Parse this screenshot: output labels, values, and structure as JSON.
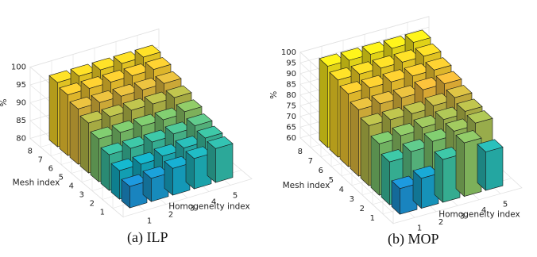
{
  "chart_data": [
    {
      "type": "bar3d",
      "caption": "(a) ILP",
      "xlabel": "Homogeneity index",
      "ylabel": "Mesh index",
      "zlabel": "%",
      "x": [
        1,
        2,
        3,
        4,
        5
      ],
      "y": [
        1,
        2,
        3,
        4,
        5,
        6,
        7,
        8
      ],
      "zlim": [
        80,
        100
      ],
      "zticks": [
        80,
        85,
        90,
        95,
        100
      ],
      "values": [
        [
          86.0,
          86.5,
          87.5,
          88.5,
          89.5
        ],
        [
          88.0,
          88.0,
          88.5,
          89.0,
          90.0
        ],
        [
          90.0,
          90.0,
          90.0,
          90.5,
          91.0
        ],
        [
          92.0,
          92.0,
          92.0,
          92.0,
          92.5
        ],
        [
          94.0,
          94.0,
          94.0,
          94.0,
          94.0
        ],
        [
          95.5,
          95.5,
          95.5,
          95.5,
          95.5
        ],
        [
          97.0,
          97.0,
          97.0,
          97.0,
          97.0
        ],
        [
          98.0,
          98.0,
          98.0,
          98.0,
          98.0
        ]
      ],
      "grid": true
    },
    {
      "type": "bar3d",
      "caption": "(b) MOP",
      "xlabel": "Homogeneity index",
      "ylabel": "Mesh index",
      "zlabel": "%",
      "x": [
        1,
        2,
        3,
        4,
        5
      ],
      "y": [
        1,
        2,
        3,
        4,
        5,
        6,
        7,
        8
      ],
      "zlim": [
        60,
        100
      ],
      "zticks": [
        60,
        65,
        70,
        75,
        80,
        85,
        90,
        95,
        100
      ],
      "values": [
        [
          72.0,
          74.0,
          80.0,
          85.0,
          78.0
        ],
        [
          80.0,
          82.0,
          84.0,
          86.0,
          87.0
        ],
        [
          84.0,
          85.0,
          86.0,
          87.0,
          88.0
        ],
        [
          88.0,
          88.0,
          88.0,
          89.0,
          90.0
        ],
        [
          91.0,
          91.0,
          91.0,
          92.0,
          92.0
        ],
        [
          94.0,
          94.0,
          94.0,
          94.0,
          94.0
        ],
        [
          96.0,
          96.0,
          96.0,
          96.0,
          96.0
        ],
        [
          98.0,
          98.0,
          98.0,
          98.0,
          98.0
        ]
      ],
      "grid": true
    }
  ],
  "colors": {
    "palette": [
      "#352a87",
      "#2a3fb8",
      "#0b6fe0",
      "#1c93d4",
      "#14b0c6",
      "#3bbfa0",
      "#7cc56c",
      "#b8bd4a",
      "#f0ba39",
      "#f9d726",
      "#f9fb0e"
    ],
    "edge": "#1a1a1a",
    "grid": "#e2e2e2"
  }
}
